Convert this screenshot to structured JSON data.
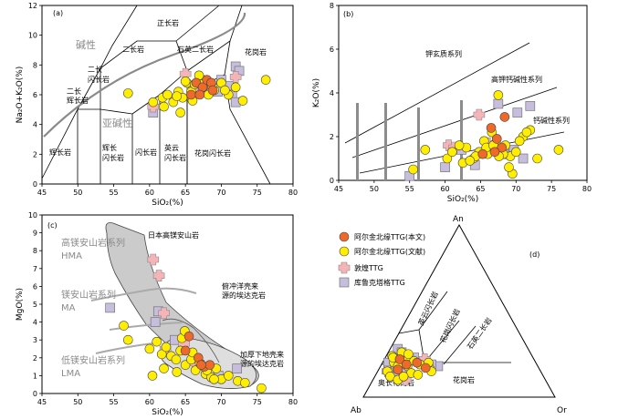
{
  "legend": {
    "items": [
      {
        "label": "阿尔金北缘TTG(本文)",
        "symbol": "circle",
        "color": "#ef6a2a"
      },
      {
        "label": "阿尔金北缘TTG(文献)",
        "symbol": "circle",
        "color": "#ffee00"
      },
      {
        "label": "敦煌TTG",
        "symbol": "square-cross",
        "color": "#f4b4b8"
      },
      {
        "label": "库鲁克塔格TTG",
        "symbol": "square",
        "color": "#c6bedc"
      }
    ]
  },
  "chart_data": [
    {
      "id": "a",
      "type": "scatter",
      "panel_label": "(a)",
      "xlabel": "SiO₂(%)",
      "ylabel": "Na₂O+K₂O(%)",
      "xlim": [
        45,
        80
      ],
      "ylim": [
        0,
        12
      ],
      "xticks": [
        45,
        50,
        55,
        60,
        65,
        70,
        75,
        80
      ],
      "yticks": [
        0,
        2,
        4,
        6,
        8,
        10,
        12
      ],
      "field_labels": [
        "正长岩",
        "二长岩",
        "二长闪长岩",
        "二长辉长岩",
        "石英二长岩",
        "花岗岩",
        "辉长岩",
        "辉长闪长岩",
        "闪长岩",
        "英云闪长岩",
        "花岗闪长岩"
      ],
      "series_labels": [
        "碱性",
        "亚碱性"
      ],
      "series": [
        {
          "name": "阿尔金北缘TTG(本文)",
          "x": [
            65.8,
            66.5,
            67.4,
            68.0,
            68.6,
            67.0,
            68.8
          ],
          "y": [
            6.0,
            6.8,
            6.5,
            7.0,
            6.8,
            6.0,
            6.3
          ]
        },
        {
          "name": "阿尔金北缘TTG(文献)",
          "x": [
            57.0,
            60.5,
            61.8,
            62.5,
            63.3,
            64.0,
            64.6,
            65.2,
            65.8,
            66.3,
            66.9,
            67.5,
            68.2,
            69.0,
            70.0,
            71.0,
            62.0,
            63.8,
            65.0,
            66.0,
            67.2,
            68.7,
            70.5,
            72.0,
            73.0,
            76.2,
            64.3
          ],
          "y": [
            6.1,
            5.5,
            5.8,
            6.0,
            5.5,
            6.2,
            5.8,
            6.8,
            6.2,
            6.7,
            7.3,
            6.5,
            6.0,
            6.3,
            6.8,
            6.0,
            5.2,
            5.9,
            6.9,
            5.6,
            6.7,
            6.6,
            6.3,
            6.5,
            5.6,
            7.0,
            4.8
          ]
        },
        {
          "name": "敦煌TTG",
          "x": [
            60.5,
            65.0,
            66.0,
            72.0
          ],
          "y": [
            5.2,
            7.4,
            6.4,
            7.2
          ]
        },
        {
          "name": "库鲁克塔格TTG",
          "x": [
            60.5,
            67.0,
            69.5,
            70.0,
            71.0,
            71.5,
            72.0,
            72.5,
            72.0
          ],
          "y": [
            4.8,
            7.0,
            6.2,
            7.0,
            6.6,
            6.0,
            7.9,
            7.6,
            5.5
          ]
        }
      ]
    },
    {
      "id": "b",
      "type": "scatter",
      "panel_label": "(b)",
      "xlabel": "SiO₂(%)",
      "ylabel": "K₂O(%)",
      "xlim": [
        45,
        80
      ],
      "ylim": [
        0,
        8
      ],
      "xticks": [
        45,
        50,
        55,
        60,
        65,
        70,
        75,
        80
      ],
      "yticks": [
        0,
        2,
        4,
        6,
        8
      ],
      "field_labels": [
        "钾玄质系列",
        "高钾钙碱性系列",
        "钙碱性系列"
      ],
      "series": [
        {
          "name": "阿尔金北缘TTG(本文)",
          "x": [
            66.5,
            67.3,
            68.0,
            68.4,
            67.0,
            65.3
          ],
          "y": [
            2.4,
            1.9,
            1.5,
            2.9,
            1.3,
            1.2
          ]
        },
        {
          "name": "阿尔金北缘TTG(文献)",
          "x": [
            55.5,
            57.2,
            60.3,
            61.0,
            62.5,
            63.0,
            64.0,
            64.8,
            65.5,
            66.0,
            66.6,
            67.2,
            67.8,
            68.5,
            69.2,
            70.0,
            71.0,
            72.0,
            73.0,
            76.0,
            62.0,
            64.3,
            65.8,
            67.5,
            68.2,
            69.5,
            70.5,
            71.5,
            63.5,
            66.8,
            67.6,
            69.0
          ],
          "y": [
            0.5,
            1.4,
            1.0,
            1.3,
            0.8,
            1.5,
            1.0,
            1.3,
            1.8,
            1.2,
            2.2,
            1.7,
            1.3,
            1.6,
            1.1,
            1.3,
            2.0,
            2.3,
            1.0,
            1.4,
            1.6,
            1.1,
            1.5,
            3.9,
            1.2,
            0.3,
            1.8,
            2.2,
            0.9,
            1.6,
            1.1,
            0.6
          ]
        },
        {
          "name": "敦煌TTG",
          "x": [
            60.5,
            61.3,
            64.8,
            66.0
          ],
          "y": [
            1.6,
            1.5,
            3.0,
            1.7
          ]
        },
        {
          "name": "库鲁克塔格TTG",
          "x": [
            55.0,
            60.0,
            64.2,
            67.5,
            68.3,
            69.7,
            70.2,
            71.0,
            72.0,
            62.3
          ],
          "y": [
            0.2,
            0.6,
            0.7,
            3.5,
            1.2,
            1.4,
            3.1,
            1.0,
            3.4,
            1.4
          ]
        }
      ]
    },
    {
      "id": "c",
      "type": "scatter",
      "panel_label": "(c)",
      "xlabel": "SiO₂(%)",
      "ylabel": "MgO(%)",
      "xlim": [
        45,
        80
      ],
      "ylim": [
        0,
        10
      ],
      "xticks": [
        45,
        50,
        55,
        60,
        65,
        70,
        75,
        80
      ],
      "yticks": [
        0,
        1,
        2,
        3,
        4,
        5,
        6,
        7,
        8,
        9,
        10
      ],
      "field_labels": [
        "日本高镁安山岩",
        "俯冲洋壳来源的埃达克岩",
        "加厚下地壳来源的埃达克岩"
      ],
      "series_labels": [
        "高镁安山岩系列 HMA",
        "镁安山岩系列 MA",
        "低镁安山岩系列 LMA"
      ],
      "series": [
        {
          "name": "阿尔金北缘TTG(本文)",
          "x": [
            65.5,
            66.8,
            67.6,
            68.4,
            65.0,
            67.2
          ],
          "y": [
            3.2,
            2.0,
            1.5,
            1.6,
            2.4,
            1.6
          ]
        },
        {
          "name": "阿尔金北缘TTG(文献)",
          "x": [
            56.4,
            57.0,
            60.0,
            61.0,
            61.7,
            62.3,
            63.0,
            63.7,
            64.3,
            65.0,
            65.8,
            66.4,
            67.0,
            67.8,
            68.6,
            69.3,
            70.0,
            71.0,
            72.3,
            73.3,
            75.6,
            62.0,
            63.8,
            64.5,
            66.0,
            69.0,
            60.4,
            68.0,
            64.9
          ],
          "y": [
            3.8,
            3.0,
            2.5,
            2.9,
            2.2,
            2.6,
            2.1,
            1.9,
            2.4,
            1.6,
            1.9,
            1.3,
            1.7,
            1.1,
            0.9,
            1.4,
            0.8,
            1.0,
            0.7,
            0.6,
            0.3,
            1.4,
            1.2,
            3.1,
            2.3,
            0.8,
            1.0,
            1.3,
            3.5
          ]
        },
        {
          "name": "敦煌TTG",
          "x": [
            60.5,
            61.3,
            62.0,
            62.2,
            64.8,
            66.3
          ],
          "y": [
            7.5,
            6.6,
            4.5,
            2.5,
            2.8,
            1.7
          ]
        },
        {
          "name": "库鲁克塔格TTG",
          "x": [
            54.5,
            60.8,
            61.2,
            63.5,
            66.0,
            67.0,
            69.6,
            72.2
          ],
          "y": [
            4.8,
            4.0,
            4.6,
            3.0,
            1.8,
            1.6,
            1.0,
            1.4
          ]
        }
      ]
    },
    {
      "id": "d",
      "type": "scatter",
      "panel_label": "(d)",
      "apex_labels": [
        "An",
        "Ab",
        "Or"
      ],
      "field_labels": [
        "英云闪长岩",
        "花岗闪长岩",
        "石英二长岩",
        "奥长花岗岩",
        "花岗岩"
      ],
      "series": [
        {
          "name": "阿尔金北缘TTG(本文)",
          "an": [
            0.22,
            0.19,
            0.2,
            0.17,
            0.16
          ],
          "or": [
            0.08,
            0.13,
            0.18,
            0.24,
            0.1
          ]
        },
        {
          "name": "阿尔金北缘TTG(文献)",
          "an": [
            0.24,
            0.2,
            0.18,
            0.22,
            0.15,
            0.12,
            0.26,
            0.18,
            0.21,
            0.14,
            0.19,
            0.13,
            0.25,
            0.17,
            0.1,
            0.23,
            0.16,
            0.12,
            0.2,
            0.15
          ],
          "or": [
            0.03,
            0.06,
            0.09,
            0.12,
            0.05,
            0.08,
            0.07,
            0.14,
            0.16,
            0.18,
            0.2,
            0.22,
            0.11,
            0.26,
            0.13,
            0.04,
            0.1,
            0.15,
            0.24,
            0.28
          ]
        },
        {
          "name": "敦煌TTG",
          "an": [
            0.22,
            0.15,
            0.1,
            0.23
          ],
          "or": [
            0.21,
            0.05,
            0.17,
            0.12
          ]
        },
        {
          "name": "库鲁克塔格TTG",
          "an": [
            0.28,
            0.26,
            0.24,
            0.2,
            0.16,
            0.23,
            0.14,
            0.18,
            0.21,
            0.12,
            0.19
          ],
          "or": [
            0.04,
            0.07,
            0.1,
            0.03,
            0.09,
            0.15,
            0.13,
            0.3,
            0.22,
            0.1,
            0.26
          ]
        }
      ]
    }
  ]
}
